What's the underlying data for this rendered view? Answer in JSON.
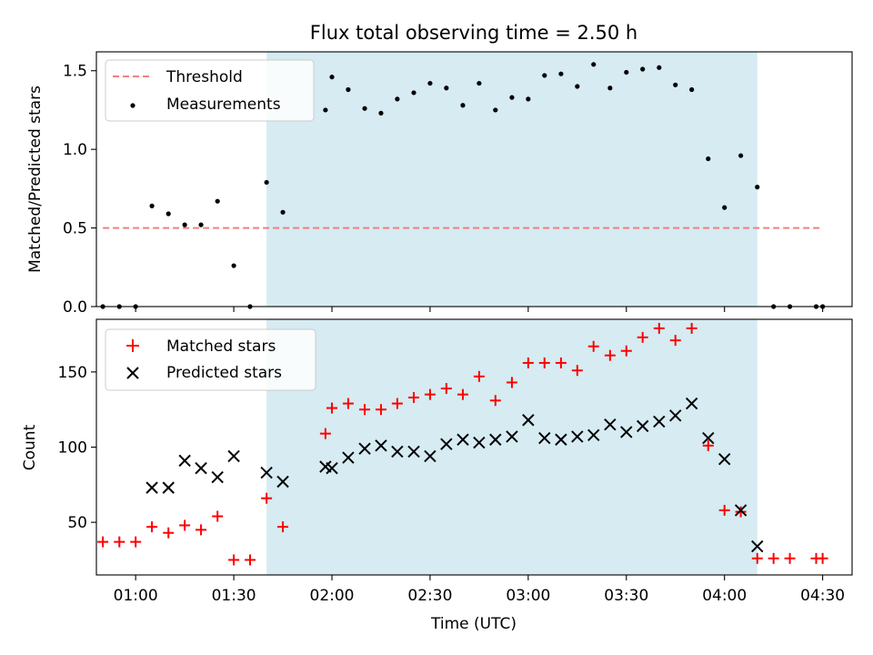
{
  "chart_data": [
    {
      "type": "scatter",
      "title": "Flux total observing time = 2.50 h",
      "ylabel": "Matched/Predicted stars",
      "xlabel": "",
      "x_unit": "hours UTC",
      "xlim": [
        0.8,
        4.65
      ],
      "ylim": [
        0,
        1.62
      ],
      "yticks": [
        0.0,
        0.5,
        1.0,
        1.5
      ],
      "ytick_labels": [
        "0.0",
        "0.5",
        "1.0",
        "1.5"
      ],
      "shaded_interval": [
        1.667,
        4.167
      ],
      "grid": false,
      "legend_position": "top-left",
      "series": [
        {
          "name": "Threshold",
          "kind": "dashed-line",
          "color": "#f08080",
          "x": [
            0.833,
            4.5
          ],
          "y": [
            0.5,
            0.5
          ]
        },
        {
          "name": "Measurements",
          "kind": "dot",
          "color": "#000000",
          "x": [
            0.833,
            0.917,
            1.0,
            1.083,
            1.167,
            1.25,
            1.333,
            1.417,
            1.5,
            1.583,
            1.667,
            1.75,
            1.967,
            2.0,
            2.083,
            2.167,
            2.25,
            2.333,
            2.417,
            2.5,
            2.583,
            2.667,
            2.75,
            2.833,
            2.917,
            3.0,
            3.083,
            3.167,
            3.25,
            3.333,
            3.417,
            3.5,
            3.583,
            3.667,
            3.75,
            3.833,
            3.917,
            4.0,
            4.083,
            4.167,
            4.25,
            4.333,
            4.467,
            4.5
          ],
          "y": [
            0.0,
            0.0,
            0.0,
            0.64,
            0.59,
            0.52,
            0.52,
            0.67,
            0.26,
            0.0,
            0.79,
            0.6,
            1.25,
            1.46,
            1.38,
            1.26,
            1.23,
            1.32,
            1.36,
            1.42,
            1.39,
            1.28,
            1.42,
            1.25,
            1.33,
            1.32,
            1.47,
            1.48,
            1.4,
            1.54,
            1.39,
            1.49,
            1.51,
            1.52,
            1.41,
            1.38,
            0.94,
            0.63,
            0.96,
            0.76,
            0.0,
            0.0,
            0.0,
            0.0
          ]
        }
      ]
    },
    {
      "type": "scatter",
      "title": "",
      "xlabel": "Time (UTC)",
      "ylabel": "Count",
      "x_unit": "hours UTC",
      "xlim": [
        0.8,
        4.65
      ],
      "ylim": [
        15,
        185
      ],
      "xticks": [
        1.0,
        1.5,
        2.0,
        2.5,
        3.0,
        3.5,
        4.0,
        4.5
      ],
      "xtick_labels": [
        "01:00",
        "01:30",
        "02:00",
        "02:30",
        "03:00",
        "03:30",
        "04:00",
        "04:30"
      ],
      "yticks": [
        50,
        100,
        150
      ],
      "ytick_labels": [
        "50",
        "100",
        "150"
      ],
      "shaded_interval": [
        1.667,
        4.167
      ],
      "grid": false,
      "legend_position": "top-left",
      "series": [
        {
          "name": "Matched stars",
          "kind": "plus",
          "color": "#ff0000",
          "x": [
            0.833,
            0.917,
            1.0,
            1.083,
            1.167,
            1.25,
            1.333,
            1.417,
            1.5,
            1.583,
            1.667,
            1.75,
            1.967,
            2.0,
            2.083,
            2.167,
            2.25,
            2.333,
            2.417,
            2.5,
            2.583,
            2.667,
            2.75,
            2.833,
            2.917,
            3.0,
            3.083,
            3.167,
            3.25,
            3.333,
            3.417,
            3.5,
            3.583,
            3.667,
            3.75,
            3.833,
            3.917,
            4.0,
            4.083,
            4.167,
            4.25,
            4.333,
            4.467,
            4.5
          ],
          "y": [
            37,
            37,
            37,
            47,
            43,
            48,
            45,
            54,
            25,
            25,
            66,
            47,
            109,
            126,
            129,
            125,
            125,
            129,
            133,
            135,
            139,
            135,
            147,
            131,
            143,
            156,
            156,
            156,
            151,
            167,
            161,
            164,
            173,
            179,
            171,
            179,
            101,
            58,
            57,
            26,
            26,
            26,
            26,
            26
          ]
        },
        {
          "name": "Predicted stars",
          "kind": "x",
          "color": "#000000",
          "x": [
            1.083,
            1.167,
            1.25,
            1.333,
            1.417,
            1.5,
            1.667,
            1.75,
            1.967,
            2.0,
            2.083,
            2.167,
            2.25,
            2.333,
            2.417,
            2.5,
            2.583,
            2.667,
            2.75,
            2.833,
            2.917,
            3.0,
            3.083,
            3.167,
            3.25,
            3.333,
            3.417,
            3.5,
            3.583,
            3.667,
            3.75,
            3.833,
            3.917,
            4.0,
            4.083,
            4.167
          ],
          "y": [
            73,
            73,
            91,
            86,
            80,
            94,
            83,
            77,
            87,
            86,
            93,
            99,
            101,
            97,
            97,
            94,
            102,
            105,
            103,
            105,
            107,
            118,
            106,
            105,
            107,
            108,
            115,
            110,
            114,
            117,
            121,
            129,
            106,
            92,
            58,
            34
          ]
        }
      ]
    }
  ]
}
